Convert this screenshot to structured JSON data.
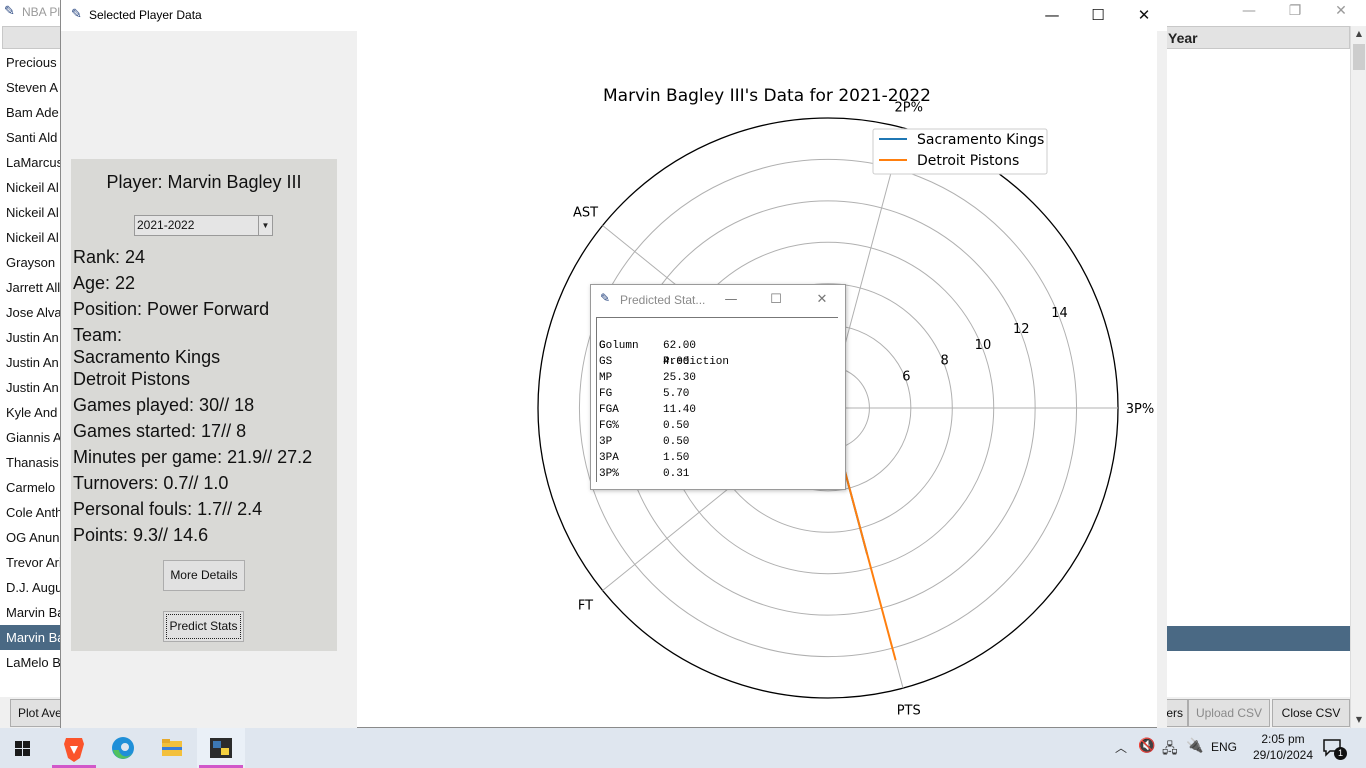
{
  "bg_window": {
    "title": "NBA Pl",
    "header_right": "Year",
    "players": [
      "Precious",
      "Steven A",
      "Bam Ade",
      "Santi Ald",
      "LaMarcus",
      "Nickeil Al",
      "Nickeil Al",
      "Nickeil Al",
      "Grayson",
      "Jarrett All",
      "Jose Alva",
      "Justin An",
      "Justin An",
      "Justin An",
      "Kyle And",
      "Giannis A",
      "Thanasis",
      "Carmelo",
      "Cole Anth",
      "OG Anun",
      "Trevor Ari",
      "D.J. Augu",
      "Marvin Ba",
      "Marvin Ba",
      "LaMelo B"
    ],
    "selected_index": 23,
    "buttons": {
      "plot": "Plot Ave",
      "players": "ers",
      "upload": "Upload CSV",
      "close": "Close CSV"
    }
  },
  "player_window": {
    "title": "Selected Player Data",
    "player_label": "Player: Marvin Bagley III",
    "season": "2021-2022",
    "rank": "Rank: 24",
    "age": "Age: 22",
    "position": "Position: Power Forward",
    "team_label": "Team:",
    "teams": [
      "Sacramento Kings",
      "Detroit Pistons"
    ],
    "games_played": "Games played: 30// 18",
    "games_started": "Games started: 17// 8",
    "minutes": "Minutes per game: 21.9// 27.2",
    "turnovers": "Turnovers: 0.7// 1.0",
    "fouls": "Personal fouls: 1.7// 2.4",
    "points": "Points: 9.3// 14.6",
    "more_details": "More Details",
    "predict_stats": "Predict Stats"
  },
  "chart_data": {
    "type": "radar",
    "title": "Marvin Bagley III's Data for 2021-2022",
    "axes": [
      "3P%",
      "2P%",
      "AST",
      "FT",
      "PTS"
    ],
    "axis_angles_deg": [
      0,
      75,
      141,
      219,
      285
    ],
    "r_ticks": [
      6,
      8,
      10,
      12,
      14
    ],
    "r_lim": [
      2,
      16
    ],
    "series": [
      {
        "name": "Sacramento Kings",
        "color": "#1f77b4",
        "values": [
          0.3,
          0.5,
          0.5,
          0.7,
          9.3
        ]
      },
      {
        "name": "Detroit Pistons",
        "color": "#ff7f0e",
        "values": [
          0.3,
          0.5,
          0.7,
          0.7,
          14.6
        ]
      }
    ],
    "legend_position": "upper-right"
  },
  "popup": {
    "title": "Predicted Stat...",
    "headers": [
      "Column",
      "Prediction"
    ],
    "rows": [
      [
        "G",
        "62.00"
      ],
      [
        "GS",
        "4.00"
      ],
      [
        "MP",
        "25.30"
      ],
      [
        "FG",
        "5.70"
      ],
      [
        "FGA",
        "11.40"
      ],
      [
        "FG%",
        "0.50"
      ],
      [
        "3P",
        "0.50"
      ],
      [
        "3PA",
        "1.50"
      ],
      [
        "3P%",
        "0.31"
      ]
    ]
  },
  "taskbar": {
    "language": "ENG",
    "time": "2:05 pm",
    "date": "29/10/2024",
    "notification_count": "1"
  }
}
